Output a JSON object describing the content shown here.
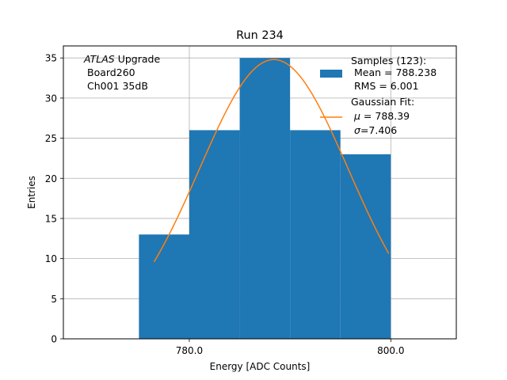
{
  "chart_data": {
    "type": "bar",
    "title": "Run 234",
    "xlabel": "Energy [ADC Counts]",
    "ylabel": "Entries",
    "xlim": [
      767.5,
      806.5
    ],
    "ylim": [
      0,
      36.5
    ],
    "grid": true,
    "x_ticks": [
      {
        "value": 780,
        "label": "780.0"
      },
      {
        "value": 800,
        "label": "800.0"
      }
    ],
    "y_ticks": [
      {
        "value": 0,
        "label": "0"
      },
      {
        "value": 5,
        "label": "5"
      },
      {
        "value": 10,
        "label": "10"
      },
      {
        "value": 15,
        "label": "15"
      },
      {
        "value": 20,
        "label": "20"
      },
      {
        "value": 25,
        "label": "25"
      },
      {
        "value": 30,
        "label": "30"
      },
      {
        "value": 35,
        "label": "35"
      }
    ],
    "histogram": {
      "bin_edges": [
        775,
        780,
        785,
        790,
        795,
        800
      ],
      "counts": [
        13,
        26,
        35,
        26,
        23
      ],
      "color": "#1f77b4"
    },
    "fit": {
      "mu": 788.39,
      "sigma": 7.406,
      "x_range": [
        776.5,
        799.8
      ],
      "peak": 34.8,
      "color": "#ff7f0e"
    },
    "annotation": {
      "italic": "ATLAS",
      "line1_rest": " Upgrade",
      "line2": "Board260",
      "line3": "Ch001 35dB"
    },
    "legend": {
      "position": "top-right",
      "entries": [
        {
          "kind": "patch",
          "lines": [
            "Samples (123):",
            " Mean = 788.238",
            " RMS = 6.001"
          ]
        },
        {
          "kind": "line",
          "line1": "Gaussian Fit:",
          "mu_symbol": "μ",
          "mu_value": " = 788.39",
          "sigma_symbol": "σ",
          "sigma_value": "=7.406"
        }
      ]
    }
  }
}
